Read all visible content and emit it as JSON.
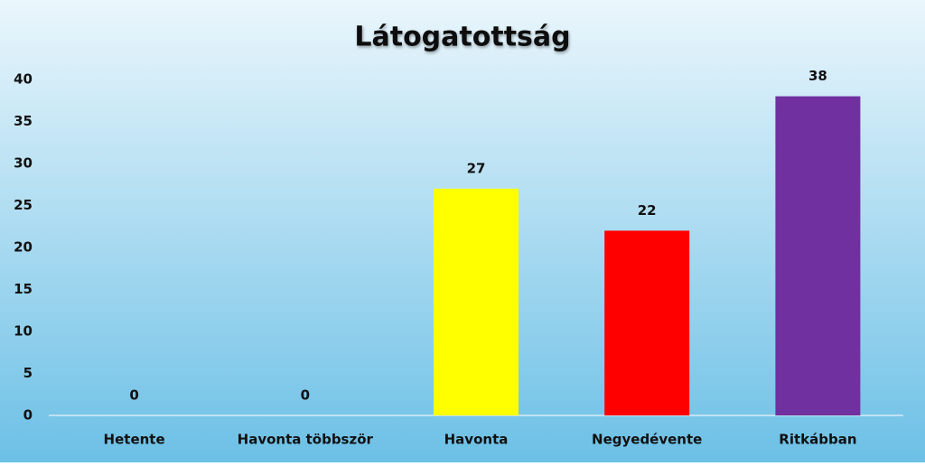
{
  "chart_data": {
    "type": "bar",
    "title": "Látogatottság",
    "categories": [
      "Hetente",
      "Havonta többször",
      "Havonta",
      "Negyedévente",
      "Ritkábban"
    ],
    "values": [
      0,
      0,
      27,
      22,
      38
    ],
    "colors": [
      null,
      null,
      "#ffff00",
      "#ff0000",
      "#7030a0"
    ],
    "ylim": [
      0,
      40
    ],
    "yticks": [
      0,
      5,
      10,
      15,
      20,
      25,
      30,
      35,
      40
    ],
    "grid": false
  }
}
